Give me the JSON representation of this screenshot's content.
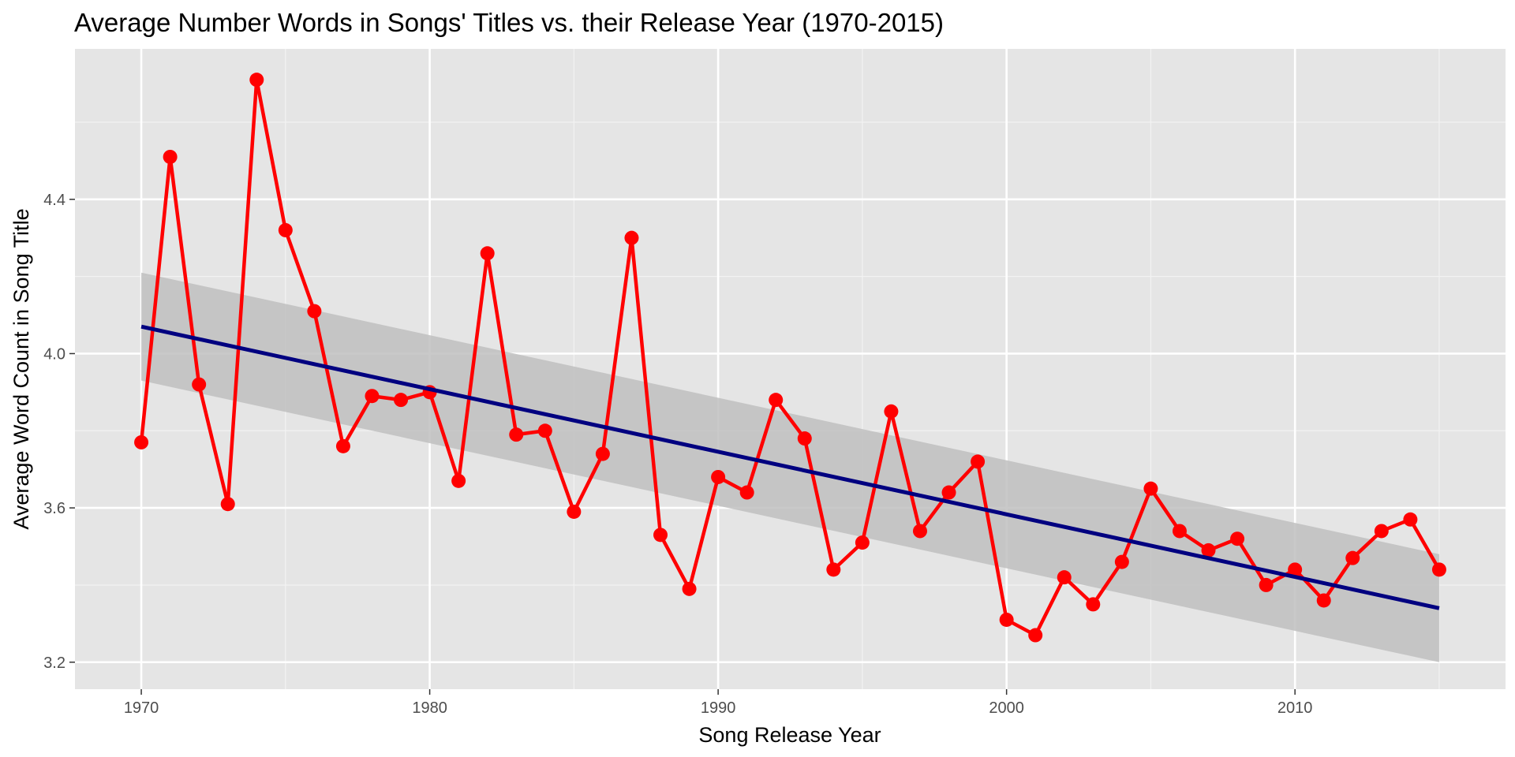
{
  "chart_data": {
    "type": "line",
    "title": "Average Number Words in Songs' Titles vs. their Release Year (1970-2015)",
    "xlabel": "Song Release Year",
    "ylabel": "Average Word Count in Song Title",
    "xlim": [
      1967.7,
      2017.3
    ],
    "ylim": [
      3.13,
      4.79
    ],
    "x_ticks": [
      1970,
      1980,
      1990,
      2000,
      2010
    ],
    "x_ticks_minor": [
      1975,
      1985,
      1995,
      2005,
      2015
    ],
    "y_ticks": [
      3.2,
      3.6,
      4.0,
      4.4
    ],
    "y_ticks_minor": [
      3.4,
      3.8,
      4.2,
      4.6
    ],
    "grid": true,
    "background": "#e5e5e5",
    "series": [
      {
        "color": "#ff0000",
        "style": "line+points",
        "x": [
          1970,
          1971,
          1972,
          1973,
          1974,
          1975,
          1976,
          1977,
          1978,
          1979,
          1980,
          1981,
          1982,
          1983,
          1984,
          1985,
          1986,
          1987,
          1988,
          1989,
          1990,
          1991,
          1992,
          1993,
          1994,
          1995,
          1996,
          1997,
          1998,
          1999,
          2000,
          2001,
          2002,
          2003,
          2004,
          2005,
          2006,
          2007,
          2008,
          2009,
          2010,
          2011,
          2012,
          2013,
          2014,
          2015
        ],
        "y": [
          3.77,
          4.51,
          3.92,
          3.61,
          4.71,
          4.32,
          4.11,
          3.76,
          3.89,
          3.88,
          3.9,
          3.67,
          4.26,
          3.79,
          3.8,
          3.59,
          3.74,
          4.3,
          3.53,
          3.39,
          3.68,
          3.64,
          3.88,
          3.78,
          3.44,
          3.51,
          3.85,
          3.54,
          3.64,
          3.72,
          3.31,
          3.27,
          3.42,
          3.35,
          3.46,
          3.65,
          3.54,
          3.49,
          3.52,
          3.4,
          3.44,
          3.36,
          3.47,
          3.54,
          3.57,
          3.44
        ]
      }
    ],
    "trend": {
      "type": "linear",
      "color": "#000080",
      "x": [
        1970,
        2015
      ],
      "y": [
        4.07,
        3.34
      ],
      "ci_color": "#bfbfbf",
      "ci_lower": [
        3.93,
        3.2
      ],
      "ci_upper": [
        4.21,
        3.48
      ]
    }
  }
}
